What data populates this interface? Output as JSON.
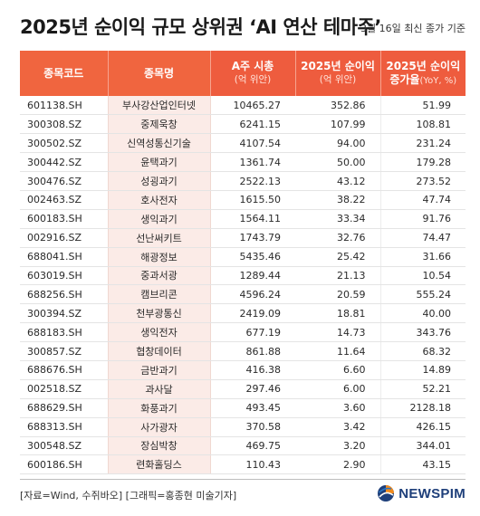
{
  "title": "2025년 순이익 규모 상위권 ‘AI 연산 테마주’",
  "subtitle": "3월 16일 최신 종가 기준",
  "table": {
    "headers": {
      "code": "종목코드",
      "name": "종목명",
      "market_cap": "A주 시총",
      "market_cap_unit": "(억 위안)",
      "net_income": "2025년 순이익",
      "net_income_unit": "(억 위안)",
      "growth_line1": "2025년 순이익",
      "growth_line2": "증가율",
      "growth_unit": "(YoY, %)"
    },
    "rows": [
      {
        "code": "601138.SH",
        "name": "부사강산업인터넷",
        "market_cap": "10465.27",
        "net_income": "352.86",
        "growth": "51.99"
      },
      {
        "code": "300308.SZ",
        "name": "중제욱창",
        "market_cap": "6241.15",
        "net_income": "107.99",
        "growth": "108.81"
      },
      {
        "code": "300502.SZ",
        "name": "신역성통신기술",
        "market_cap": "4107.54",
        "net_income": "94.00",
        "growth": "231.24"
      },
      {
        "code": "300442.SZ",
        "name": "윤택과기",
        "market_cap": "1361.74",
        "net_income": "50.00",
        "growth": "179.28"
      },
      {
        "code": "300476.SZ",
        "name": "성굉과기",
        "market_cap": "2522.13",
        "net_income": "43.12",
        "growth": "273.52"
      },
      {
        "code": "002463.SZ",
        "name": "호사전자",
        "market_cap": "1615.50",
        "net_income": "38.22",
        "growth": "47.74"
      },
      {
        "code": "600183.SH",
        "name": "생익과기",
        "market_cap": "1564.11",
        "net_income": "33.34",
        "growth": "91.76"
      },
      {
        "code": "002916.SZ",
        "name": "선난써키트",
        "market_cap": "1743.79",
        "net_income": "32.76",
        "growth": "74.47"
      },
      {
        "code": "688041.SH",
        "name": "해광정보",
        "market_cap": "5435.46",
        "net_income": "25.42",
        "growth": "31.66"
      },
      {
        "code": "603019.SH",
        "name": "중과서광",
        "market_cap": "1289.44",
        "net_income": "21.13",
        "growth": "10.54"
      },
      {
        "code": "688256.SH",
        "name": "캠브리콘",
        "market_cap": "4596.24",
        "net_income": "20.59",
        "growth": "555.24"
      },
      {
        "code": "300394.SZ",
        "name": "천부광통신",
        "market_cap": "2419.09",
        "net_income": "18.81",
        "growth": "40.00"
      },
      {
        "code": "688183.SH",
        "name": "생익전자",
        "market_cap": "677.19",
        "net_income": "14.73",
        "growth": "343.76"
      },
      {
        "code": "300857.SZ",
        "name": "협창데이터",
        "market_cap": "861.88",
        "net_income": "11.64",
        "growth": "68.32"
      },
      {
        "code": "688676.SH",
        "name": "금반과기",
        "market_cap": "416.38",
        "net_income": "6.60",
        "growth": "14.89"
      },
      {
        "code": "002518.SZ",
        "name": "과사달",
        "market_cap": "297.46",
        "net_income": "6.00",
        "growth": "52.21"
      },
      {
        "code": "688629.SH",
        "name": "화풍과기",
        "market_cap": "493.45",
        "net_income": "3.60",
        "growth": "2128.18"
      },
      {
        "code": "688313.SH",
        "name": "사가광자",
        "market_cap": "370.58",
        "net_income": "3.42",
        "growth": "426.15"
      },
      {
        "code": "300548.SZ",
        "name": "장심박창",
        "market_cap": "469.75",
        "net_income": "3.20",
        "growth": "344.01"
      },
      {
        "code": "600186.SH",
        "name": "련화홀딩스",
        "market_cap": "110.43",
        "net_income": "2.90",
        "growth": "43.15"
      }
    ]
  },
  "footer": {
    "source": "[자료=Wind, 수쥐바오] [그래픽=홍종현 미술기자]",
    "logo_text": "NEWSPIM",
    "logo_icon": "newspim-globe-icon",
    "logo_colors": [
      "#1e3f7a",
      "#f08a1c",
      "#2a76c6"
    ]
  },
  "colors": {
    "header_bg": "#ee5c3e",
    "name_col_bg": "#fbebe7"
  }
}
